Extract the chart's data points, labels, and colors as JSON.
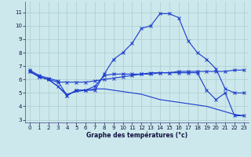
{
  "background_color": "#cce8ec",
  "grid_color": "#aacccc",
  "line_color": "#1a3acc",
  "xlabel": "Graphe des températures (°c)",
  "xlim": [
    -0.5,
    23.5
  ],
  "ylim": [
    2.8,
    11.8
  ],
  "yticks": [
    3,
    4,
    5,
    6,
    7,
    8,
    9,
    10,
    11
  ],
  "xticks": [
    0,
    1,
    2,
    3,
    4,
    5,
    6,
    7,
    8,
    9,
    10,
    11,
    12,
    13,
    14,
    15,
    16,
    17,
    18,
    19,
    20,
    21,
    22,
    23
  ],
  "line1_x": [
    0,
    1,
    2,
    3,
    4,
    5,
    6,
    7,
    8,
    9,
    10,
    11,
    12,
    13,
    14,
    15,
    16,
    17,
    18,
    19,
    20,
    21,
    22,
    23
  ],
  "line1_y": [
    6.7,
    6.3,
    6.1,
    5.9,
    4.8,
    5.2,
    5.2,
    5.2,
    6.4,
    7.5,
    8.0,
    8.7,
    9.8,
    10.0,
    10.9,
    10.9,
    10.6,
    8.9,
    8.0,
    7.5,
    6.8,
    5.3,
    5.0,
    5.0
  ],
  "line2_x": [
    0,
    1,
    2,
    3,
    4,
    5,
    6,
    7,
    8,
    9,
    10,
    11,
    12,
    13,
    14,
    15,
    16,
    17,
    18,
    19,
    20,
    21,
    22,
    23
  ],
  "line2_y": [
    6.6,
    6.2,
    6.0,
    5.8,
    5.8,
    5.8,
    5.8,
    5.9,
    6.0,
    6.1,
    6.2,
    6.3,
    6.4,
    6.5,
    6.5,
    6.5,
    6.6,
    6.6,
    6.6,
    6.6,
    6.6,
    6.6,
    6.7,
    6.7
  ],
  "line3_x": [
    0,
    1,
    2,
    3,
    4,
    5,
    6,
    7,
    8,
    9,
    10,
    11,
    12,
    13,
    14,
    15,
    16,
    17,
    18,
    19,
    20,
    21,
    22,
    23
  ],
  "line3_y": [
    6.6,
    6.2,
    6.0,
    5.5,
    4.8,
    5.2,
    5.2,
    5.5,
    6.3,
    6.4,
    6.4,
    6.4,
    6.4,
    6.4,
    6.5,
    6.5,
    6.5,
    6.5,
    6.5,
    5.2,
    4.5,
    5.0,
    3.3,
    3.3
  ],
  "line4_x": [
    0,
    1,
    2,
    3,
    4,
    5,
    6,
    7,
    8,
    9,
    10,
    11,
    12,
    13,
    14,
    15,
    16,
    17,
    18,
    19,
    20,
    21,
    22,
    23
  ],
  "line4_y": [
    6.6,
    6.2,
    6.0,
    5.5,
    4.9,
    5.1,
    5.2,
    5.3,
    5.3,
    5.2,
    5.1,
    5.0,
    4.9,
    4.7,
    4.5,
    4.4,
    4.3,
    4.2,
    4.1,
    4.0,
    3.8,
    3.6,
    3.4,
    3.3
  ],
  "xlabel_fontsize": 5.5,
  "tick_fontsize": 5.0
}
